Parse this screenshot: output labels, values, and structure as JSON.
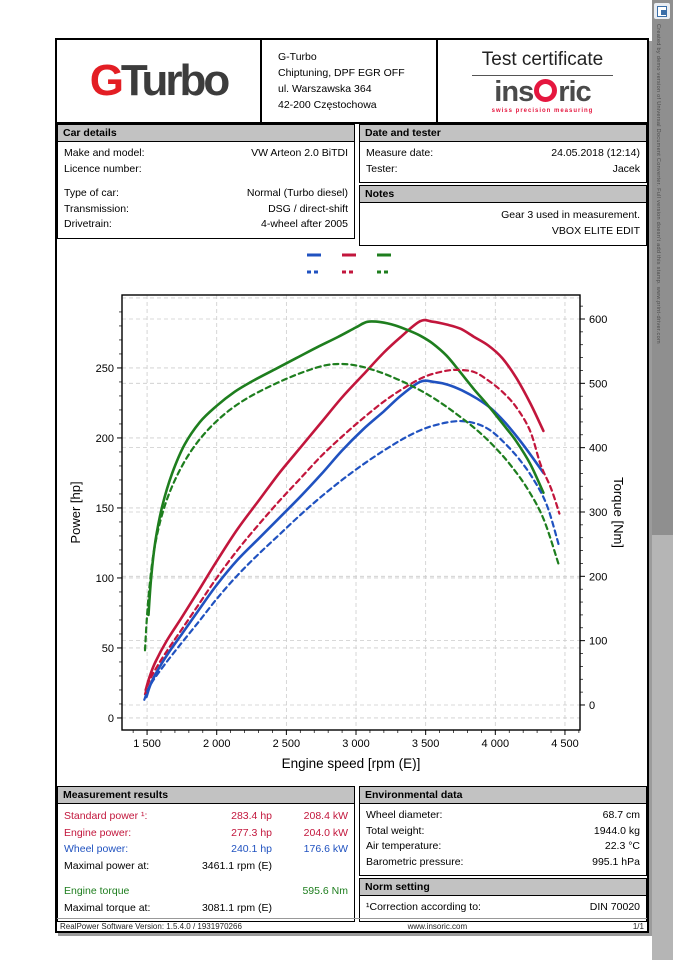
{
  "header": {
    "logo_g": "G",
    "logo_rest": "Turbo",
    "company_lines": [
      "G-Turbo",
      "Chiptuning, DPF EGR OFF",
      "ul.  Warszawska 364",
      "42-200 Częstochowa"
    ],
    "certificate_title": "Test certificate",
    "insoric_left": "ins",
    "insoric_right": "ric",
    "insoric_tagline": "swiss precision measuring"
  },
  "car_details": {
    "title": "Car details",
    "rows": [
      {
        "label": "Make and model:",
        "value": "VW Arteon 2.0 BiTDI"
      },
      {
        "label": "Licence number:",
        "value": ""
      },
      {
        "spacer": true
      },
      {
        "label": "Type of car:",
        "value": "Normal (Turbo diesel)"
      },
      {
        "label": "Transmission:",
        "value": "DSG / direct-shift"
      },
      {
        "label": "Drivetrain:",
        "value": "4-wheel after 2005"
      }
    ]
  },
  "date_tester": {
    "title": "Date and tester",
    "rows": [
      {
        "label": "Measure date:",
        "value": "24.05.2018 (12:14)"
      },
      {
        "label": "Tester:",
        "value": "Jacek"
      }
    ]
  },
  "notes": {
    "title": "Notes",
    "lines": [
      "Gear 3 used in measurement.",
      "VBOX ELITE EDIT"
    ]
  },
  "measurement": {
    "title": "Measurement results",
    "rows": [
      {
        "label": "Standard power ¹:",
        "col2": "283.4 hp",
        "col3": "208.4 kW",
        "color": "red"
      },
      {
        "label": "Engine power:",
        "col2": "277.3 hp",
        "col3": "204.0 kW",
        "color": "red"
      },
      {
        "label": "Wheel power:",
        "col2": "240.1 hp",
        "col3": "176.6 kW",
        "color": "blue"
      },
      {
        "label": "Maximal power at:",
        "col2": "3461.1 rpm (E)",
        "col3": "",
        "color": "black"
      },
      {
        "spacer": true
      },
      {
        "label": "Engine torque",
        "col2": "",
        "col3": "595.6 Nm",
        "color": "green"
      },
      {
        "label": "Maximal torque at:",
        "col2": "3081.1 rpm (E)",
        "col3": "",
        "color": "black"
      }
    ]
  },
  "environmental": {
    "title": "Environmental data",
    "rows": [
      {
        "label": "Wheel diameter:",
        "value": "68.7 cm"
      },
      {
        "label": "Total weight:",
        "value": "1944.0 kg"
      },
      {
        "label": "Air temperature:",
        "value": "22.3 °C"
      },
      {
        "label": "Barometric pressure:",
        "value": "995.1 hPa"
      }
    ]
  },
  "norm": {
    "title": "Norm setting",
    "rows": [
      {
        "label": "¹Correction according to:",
        "value": "DIN 70020"
      }
    ]
  },
  "footer": {
    "left": "RealPower Software Version: 1.5.4.0 / 1931970266",
    "center": "www.insoric.com",
    "right": "1/1"
  },
  "watermark": {
    "line1": "Created by demo version of Universal Document Converter. Full version doesn't add this stamp.",
    "line2": "www.print-driver.com"
  },
  "colors": {
    "red": "#c2163c",
    "blue": "#2052c0",
    "green": "#1e7e1e",
    "black": "#000000",
    "grid": "#cccccc",
    "axis": "#000000"
  },
  "chart_data": {
    "type": "line",
    "title": "",
    "xlabel": "Engine speed [rpm (E)]",
    "ylabel_left": "Power [hp]",
    "ylabel_right": "Torque [Nm]",
    "grid": true,
    "legend_position": "top-center",
    "axes": {
      "x": {
        "range": [
          1320,
          4608
        ],
        "ticks": [
          1500,
          2000,
          2500,
          3000,
          3500,
          4000,
          4500
        ],
        "tick_labels": [
          "1 500",
          "2 000",
          "2 500",
          "3 000",
          "3 500",
          "4 000",
          "4 500"
        ],
        "minor_step": 100
      },
      "power": {
        "range": [
          -8.6,
          302.1
        ],
        "ticks": [
          0,
          50,
          100,
          150,
          200,
          250
        ],
        "grid_lines": [
          0,
          50,
          100,
          150,
          200,
          250,
          300
        ],
        "minor_step": 10
      },
      "torque": {
        "range": [
          -38.9,
          637.3
        ],
        "ticks": [
          0,
          100,
          200,
          300,
          400,
          500,
          600
        ],
        "grid_lines": [
          0,
          100,
          200,
          300,
          400,
          500,
          600
        ],
        "minor_step": 20
      }
    },
    "legend": {
      "rows": [
        {
          "style": "solid",
          "colors": [
            "#2052c0",
            "#c2163c",
            "#1e7e1e"
          ]
        },
        {
          "style": "dashed",
          "colors": [
            "#2052c0",
            "#c2163c",
            "#1e7e1e"
          ]
        }
      ]
    },
    "series": [
      {
        "name": "standard-power-tuned",
        "axis": "power",
        "color": "#c2163c",
        "dash": false,
        "points": [
          [
            1490,
            20
          ],
          [
            1520,
            30
          ],
          [
            1560,
            40
          ],
          [
            1640,
            55
          ],
          [
            1750,
            72
          ],
          [
            1870,
            91
          ],
          [
            2000,
            112
          ],
          [
            2150,
            135
          ],
          [
            2300,
            155
          ],
          [
            2450,
            175
          ],
          [
            2600,
            193
          ],
          [
            2750,
            211
          ],
          [
            2900,
            229
          ],
          [
            3050,
            245
          ],
          [
            3200,
            261
          ],
          [
            3320,
            272
          ],
          [
            3461,
            283.4
          ],
          [
            3550,
            283
          ],
          [
            3650,
            281
          ],
          [
            3750,
            278
          ],
          [
            3850,
            272
          ],
          [
            3950,
            266
          ],
          [
            4050,
            257
          ],
          [
            4150,
            243
          ],
          [
            4250,
            225
          ],
          [
            4345,
            205
          ]
        ]
      },
      {
        "name": "wheel-power-tuned",
        "axis": "power",
        "color": "#2052c0",
        "dash": false,
        "points": [
          [
            1495,
            15
          ],
          [
            1525,
            24
          ],
          [
            1570,
            33
          ],
          [
            1650,
            46
          ],
          [
            1750,
            60
          ],
          [
            1870,
            77
          ],
          [
            2000,
            95
          ],
          [
            2150,
            113
          ],
          [
            2300,
            128
          ],
          [
            2450,
            143
          ],
          [
            2600,
            158
          ],
          [
            2750,
            174
          ],
          [
            2900,
            191
          ],
          [
            3050,
            206
          ],
          [
            3200,
            219
          ],
          [
            3320,
            230
          ],
          [
            3461,
            240.1
          ],
          [
            3560,
            240
          ],
          [
            3660,
            238
          ],
          [
            3760,
            234
          ],
          [
            3870,
            228
          ],
          [
            3970,
            221
          ],
          [
            4070,
            211
          ],
          [
            4170,
            199
          ],
          [
            4260,
            187
          ],
          [
            4345,
            175
          ]
        ]
      },
      {
        "name": "engine-torque-tuned",
        "axis": "torque",
        "color": "#1e7e1e",
        "dash": false,
        "points": [
          [
            1510,
            140
          ],
          [
            1530,
            200
          ],
          [
            1560,
            255
          ],
          [
            1610,
            310
          ],
          [
            1680,
            360
          ],
          [
            1770,
            405
          ],
          [
            1880,
            440
          ],
          [
            2000,
            465
          ],
          [
            2130,
            487
          ],
          [
            2270,
            505
          ],
          [
            2420,
            522
          ],
          [
            2570,
            539
          ],
          [
            2720,
            556
          ],
          [
            2870,
            572
          ],
          [
            3000,
            587
          ],
          [
            3081,
            595.6
          ],
          [
            3180,
            595
          ],
          [
            3280,
            590
          ],
          [
            3380,
            582
          ],
          [
            3461,
            574
          ],
          [
            3550,
            562
          ],
          [
            3650,
            543
          ],
          [
            3750,
            517
          ],
          [
            3850,
            490
          ],
          [
            3950,
            465
          ],
          [
            4050,
            438
          ],
          [
            4150,
            410
          ],
          [
            4250,
            375
          ],
          [
            4345,
            330
          ]
        ]
      },
      {
        "name": "standard-power-stock",
        "axis": "power",
        "color": "#c2163c",
        "dash": true,
        "points": [
          [
            1485,
            17
          ],
          [
            1510,
            25
          ],
          [
            1550,
            33
          ],
          [
            1630,
            46
          ],
          [
            1740,
            62
          ],
          [
            1870,
            81
          ],
          [
            2000,
            100
          ],
          [
            2150,
            120
          ],
          [
            2300,
            138
          ],
          [
            2450,
            155
          ],
          [
            2600,
            171
          ],
          [
            2750,
            187
          ],
          [
            2900,
            201
          ],
          [
            3050,
            214
          ],
          [
            3200,
            226
          ],
          [
            3350,
            236
          ],
          [
            3500,
            244
          ],
          [
            3650,
            248
          ],
          [
            3750,
            248.5
          ],
          [
            3850,
            247
          ],
          [
            3950,
            241
          ],
          [
            4050,
            233
          ],
          [
            4150,
            222
          ],
          [
            4250,
            205
          ],
          [
            4325,
            181
          ],
          [
            4400,
            164
          ],
          [
            4460,
            146
          ]
        ]
      },
      {
        "name": "wheel-power-stock",
        "axis": "power",
        "color": "#2052c0",
        "dash": true,
        "points": [
          [
            1480,
            13
          ],
          [
            1505,
            20
          ],
          [
            1545,
            27
          ],
          [
            1625,
            38
          ],
          [
            1735,
            52
          ],
          [
            1865,
            68
          ],
          [
            2000,
            85
          ],
          [
            2150,
            102
          ],
          [
            2300,
            117
          ],
          [
            2450,
            131
          ],
          [
            2600,
            145
          ],
          [
            2750,
            158
          ],
          [
            2900,
            170
          ],
          [
            3050,
            181
          ],
          [
            3200,
            191
          ],
          [
            3350,
            200
          ],
          [
            3500,
            207
          ],
          [
            3650,
            211
          ],
          [
            3760,
            212
          ],
          [
            3870,
            210
          ],
          [
            3970,
            205
          ],
          [
            4070,
            196
          ],
          [
            4170,
            185
          ],
          [
            4270,
            171
          ],
          [
            4370,
            152
          ],
          [
            4460,
            122
          ]
        ]
      },
      {
        "name": "engine-torque-stock",
        "axis": "torque",
        "color": "#1e7e1e",
        "dash": true,
        "points": [
          [
            1485,
            85
          ],
          [
            1500,
            140
          ],
          [
            1520,
            190
          ],
          [
            1550,
            240
          ],
          [
            1600,
            290
          ],
          [
            1670,
            335
          ],
          [
            1760,
            375
          ],
          [
            1860,
            408
          ],
          [
            1970,
            435
          ],
          [
            2090,
            458
          ],
          [
            2220,
            477
          ],
          [
            2360,
            493
          ],
          [
            2500,
            507
          ],
          [
            2640,
            519
          ],
          [
            2780,
            528
          ],
          [
            2900,
            530
          ],
          [
            3020,
            527
          ],
          [
            3150,
            519
          ],
          [
            3280,
            508
          ],
          [
            3400,
            496
          ],
          [
            3520,
            482
          ],
          [
            3640,
            465
          ],
          [
            3760,
            446
          ],
          [
            3880,
            425
          ],
          [
            4000,
            400
          ],
          [
            4120,
            370
          ],
          [
            4240,
            333
          ],
          [
            4350,
            287
          ],
          [
            4460,
            215
          ]
        ]
      }
    ],
    "annotations": {
      "max_power_hp": 283.4,
      "max_power_rpm": 3461.1,
      "max_torque_nm": 595.6,
      "max_torque_rpm": 3081.1
    }
  }
}
